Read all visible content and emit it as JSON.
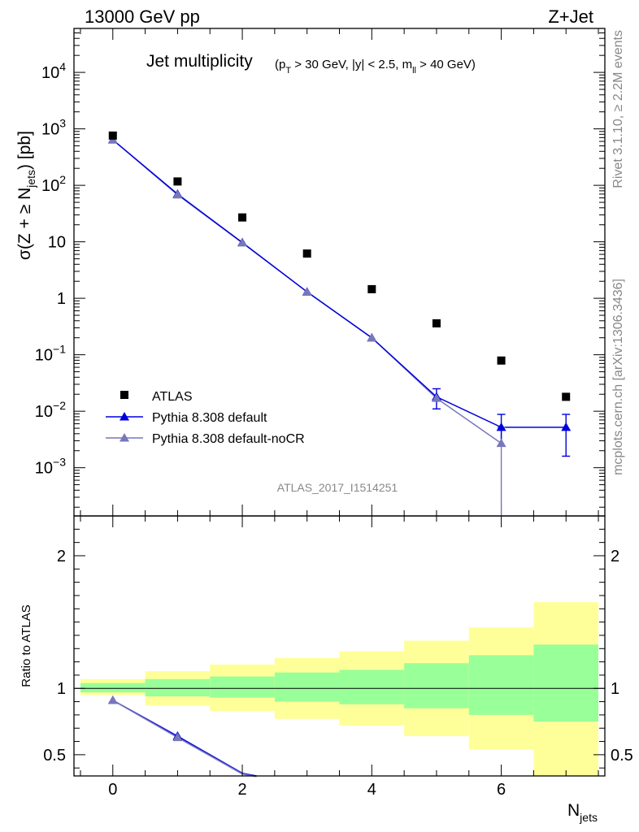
{
  "header": {
    "left": "13000 GeV pp",
    "right": "Z+Jet"
  },
  "side": {
    "rivet": "Rivet 3.1.10, ≥ 2.2M events",
    "mcplots": "mcplots.cern.ch [arXiv:1306.3436]"
  },
  "colors": {
    "atlas": "#000000",
    "pythia": "#0000dd",
    "nocr": "#7777bb",
    "band_inner": "#99ff99",
    "band_outer": "#ffff99"
  },
  "chart_data": [
    {
      "type": "scatter",
      "title_main": "Jet multiplicity",
      "title_sub": "(p_T > 30 GeV, |y| < 2.5, m_ll > 40 GeV)",
      "ylabel": "σ(Z + ≥ N_jets) [pb]",
      "yscale": "log",
      "ylim": [
        0.00014,
        60000
      ],
      "xlim": [
        -0.6,
        7.6
      ],
      "watermark": "ATLAS_2017_I1514251",
      "legend_position": "bottom-left",
      "series": [
        {
          "name": "ATLAS",
          "marker": "square",
          "x": [
            0,
            1,
            2,
            3,
            4,
            5,
            6,
            7
          ],
          "y": [
            760,
            117,
            27,
            6.2,
            1.45,
            0.36,
            0.079,
            0.018
          ]
        },
        {
          "name": "Pythia 8.308 default",
          "marker": "triangle",
          "x": [
            0,
            1,
            2,
            3,
            4,
            5,
            6,
            7
          ],
          "y": [
            640,
            70,
            9.7,
            1.3,
            0.2,
            0.018,
            0.0052,
            0.0052
          ],
          "err_low": [
            null,
            null,
            null,
            null,
            null,
            0.011,
            0.0024,
            0.0016
          ],
          "err_high": [
            null,
            null,
            null,
            null,
            null,
            0.025,
            0.0088,
            0.0088
          ]
        },
        {
          "name": "Pythia 8.308 default-noCR",
          "marker": "triangle",
          "x": [
            0,
            1,
            2,
            3,
            4,
            5,
            6
          ],
          "y": [
            640,
            68,
            9.6,
            1.3,
            0.2,
            0.017,
            0.0027
          ],
          "err_low": [
            null,
            null,
            null,
            null,
            null,
            null,
            0.00014
          ],
          "err_high": [
            null,
            null,
            null,
            null,
            null,
            null,
            0.0052
          ]
        }
      ],
      "yticks": [
        {
          "v": 10000,
          "b": "10",
          "e": "4"
        },
        {
          "v": 1000,
          "b": "10",
          "e": "3"
        },
        {
          "v": 100,
          "b": "10",
          "e": "2"
        },
        {
          "v": 10,
          "b": "10",
          "e": ""
        },
        {
          "v": 1,
          "b": "1",
          "e": ""
        },
        {
          "v": 0.1,
          "b": "10",
          "e": "−1"
        },
        {
          "v": 0.01,
          "b": "10",
          "e": "−2"
        },
        {
          "v": 0.001,
          "b": "10",
          "e": "−3"
        }
      ]
    },
    {
      "type": "scatter",
      "ylabel": "Ratio to ATLAS",
      "xlabel": "N_jets",
      "ylim": [
        0.34,
        2.3
      ],
      "xlim": [
        -0.6,
        7.6
      ],
      "xticks": [
        0,
        2,
        4,
        6
      ],
      "yticks": [
        0.5,
        1,
        2
      ],
      "bands": [
        {
          "x0": -0.5,
          "x1": 0.5,
          "inner": [
            0.97,
            1.04
          ],
          "outer": [
            0.95,
            1.07
          ]
        },
        {
          "x0": 0.5,
          "x1": 1.5,
          "inner": [
            0.94,
            1.07
          ],
          "outer": [
            0.87,
            1.13
          ]
        },
        {
          "x0": 1.5,
          "x1": 2.5,
          "inner": [
            0.93,
            1.09
          ],
          "outer": [
            0.83,
            1.18
          ]
        },
        {
          "x0": 2.5,
          "x1": 3.5,
          "inner": [
            0.9,
            1.12
          ],
          "outer": [
            0.77,
            1.23
          ]
        },
        {
          "x0": 3.5,
          "x1": 4.5,
          "inner": [
            0.88,
            1.14
          ],
          "outer": [
            0.72,
            1.28
          ]
        },
        {
          "x0": 4.5,
          "x1": 5.5,
          "inner": [
            0.85,
            1.19
          ],
          "outer": [
            0.64,
            1.36
          ]
        },
        {
          "x0": 5.5,
          "x1": 6.5,
          "inner": [
            0.8,
            1.25
          ],
          "outer": [
            0.54,
            1.46
          ]
        },
        {
          "x0": 6.5,
          "x1": 7.5,
          "inner": [
            0.75,
            1.33
          ],
          "outer": [
            0.34,
            1.65
          ]
        }
      ],
      "series": [
        {
          "name": "Pythia 8.308 default",
          "x": [
            0,
            1,
            2,
            2.22
          ],
          "y": [
            0.91,
            0.64,
            0.36,
            0.34
          ]
        },
        {
          "name": "Pythia 8.308 default-noCR",
          "x": [
            0,
            1,
            2,
            2.22
          ],
          "y": [
            0.91,
            0.63,
            0.355,
            0.335
          ]
        }
      ]
    }
  ]
}
